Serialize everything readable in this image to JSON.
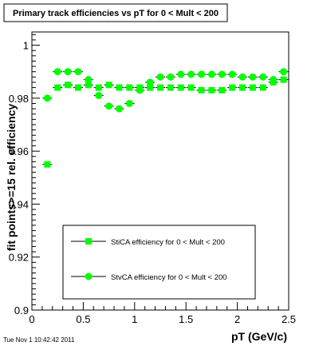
{
  "chart_data": {
    "type": "scatter",
    "title": "Primary track efficiencies vs pT for 0 < Mult < 200",
    "xlabel": "pT (GeV/c)",
    "ylabel": "fit points>=15 rel. efficiency",
    "xlim": [
      0,
      2.5
    ],
    "ylim": [
      0.9,
      1.005
    ],
    "x_ticks": [
      0,
      0.5,
      1,
      1.5,
      2,
      2.5
    ],
    "x_tick_labels": [
      "0",
      "0.5",
      "1",
      "1.5",
      "2",
      "2.5"
    ],
    "y_ticks": [
      0.9,
      0.92,
      0.94,
      0.96,
      0.98,
      1.0
    ],
    "y_tick_labels": [
      "0.9",
      "0.92",
      "0.94",
      "0.96",
      "0.98",
      "1"
    ],
    "grid": false,
    "legend_position": "bottom-center",
    "timestamp": "Tue Nov  1 10:42:42 2011",
    "series": [
      {
        "name": "StiCA efficiency  for 0 < Mult < 200",
        "marker": "square",
        "color": "#00ff00",
        "x": [
          0.15,
          0.25,
          0.35,
          0.45,
          0.55,
          0.65,
          0.75,
          0.85,
          0.95,
          1.05,
          1.15,
          1.25,
          1.35,
          1.45,
          1.55,
          1.65,
          1.75,
          1.85,
          1.95,
          2.05,
          2.15,
          2.25,
          2.35,
          2.45
        ],
        "y": [
          0.955,
          0.984,
          0.985,
          0.984,
          0.985,
          0.984,
          0.985,
          0.984,
          0.984,
          0.984,
          0.984,
          0.984,
          0.984,
          0.984,
          0.984,
          0.983,
          0.983,
          0.983,
          0.984,
          0.984,
          0.984,
          0.984,
          0.986,
          0.987
        ]
      },
      {
        "name": "StvCA efficiency  for 0 < Mult < 200",
        "marker": "circle",
        "color": "#00ff00",
        "x": [
          0.15,
          0.25,
          0.35,
          0.45,
          0.55,
          0.65,
          0.75,
          0.85,
          0.95,
          1.05,
          1.15,
          1.25,
          1.35,
          1.45,
          1.55,
          1.65,
          1.75,
          1.85,
          1.95,
          2.05,
          2.15,
          2.25,
          2.35,
          2.45
        ],
        "y": [
          0.98,
          0.99,
          0.99,
          0.99,
          0.987,
          0.981,
          0.977,
          0.976,
          0.978,
          0.983,
          0.986,
          0.988,
          0.988,
          0.989,
          0.989,
          0.989,
          0.989,
          0.989,
          0.989,
          0.988,
          0.988,
          0.988,
          0.987,
          0.99
        ]
      }
    ]
  }
}
